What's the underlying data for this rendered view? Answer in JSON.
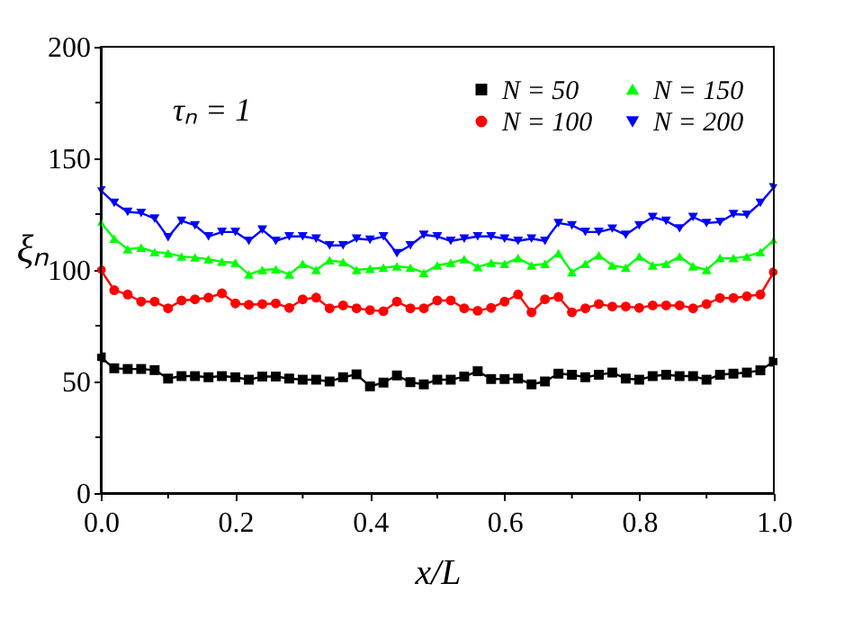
{
  "chart_data": {
    "type": "line",
    "xlabel": "x/L",
    "ylabel": "ξₙ",
    "annotations": [
      "τₙ = 1"
    ],
    "x": [
      0,
      0.02,
      0.04,
      0.06,
      0.08,
      0.1,
      0.12,
      0.14,
      0.16,
      0.18,
      0.2,
      0.22,
      0.24,
      0.26,
      0.28,
      0.3,
      0.32,
      0.34,
      0.36,
      0.38,
      0.4,
      0.42,
      0.44,
      0.46,
      0.48,
      0.5,
      0.52,
      0.54,
      0.56,
      0.58,
      0.6,
      0.62,
      0.64,
      0.66,
      0.68,
      0.7,
      0.72,
      0.74,
      0.76,
      0.78,
      0.8,
      0.82,
      0.84,
      0.86,
      0.88,
      0.9,
      0.92,
      0.94,
      0.96,
      0.98,
      1.0
    ],
    "series": [
      {
        "name": "N = 50",
        "color": "#000000",
        "marker": "square",
        "values": [
          60.8,
          55.9,
          55.6,
          55.6,
          55.1,
          51.3,
          52.4,
          52.4,
          51.9,
          52.4,
          51.9,
          50.8,
          52.2,
          52.2,
          51.3,
          50.8,
          50.8,
          50,
          51.9,
          53.2,
          47.8,
          49.5,
          52.7,
          49.7,
          48.7,
          50.8,
          50.8,
          52.2,
          54.6,
          51.1,
          51.1,
          51.3,
          48.7,
          50,
          53.5,
          53,
          51.9,
          53,
          54,
          51.3,
          50.8,
          52.4,
          53,
          52.4,
          52.4,
          50.8,
          53,
          53.5,
          54,
          55,
          58.9
        ]
      },
      {
        "name": "N = 100",
        "color": "#ff0000",
        "marker": "circle",
        "values": [
          100,
          90.9,
          89,
          85.8,
          85.8,
          82.8,
          86.3,
          86.8,
          87.6,
          89.5,
          85,
          84.4,
          84.7,
          85,
          83,
          86.8,
          87.6,
          82.8,
          84.1,
          82.8,
          82,
          81.5,
          85.8,
          82.8,
          82.8,
          86.3,
          86.3,
          82.8,
          81.7,
          83,
          85.8,
          89,
          81,
          86.8,
          87.9,
          81,
          82.8,
          84.7,
          83.6,
          83.6,
          83,
          84.1,
          84.1,
          84.1,
          82.8,
          84.7,
          87.4,
          87.4,
          88.2,
          89,
          99
        ]
      },
      {
        "name": "N = 150",
        "color": "#00ff00",
        "marker": "triangle-up",
        "values": [
          121.3,
          114,
          109.3,
          110,
          108,
          107.5,
          106,
          105.6,
          104.8,
          103.7,
          103.2,
          98,
          100,
          100.3,
          98,
          102.7,
          100,
          104.3,
          103.5,
          100,
          100.5,
          101,
          101.6,
          101,
          98.7,
          102,
          103.2,
          104.8,
          101.3,
          103.2,
          102.7,
          105.3,
          102,
          102.7,
          107.5,
          99,
          102.7,
          106.6,
          102,
          101,
          106,
          102,
          102.7,
          106,
          101.6,
          100,
          105.3,
          105.3,
          106,
          108,
          113.3
        ]
      },
      {
        "name": "N = 200",
        "color": "#0000ff",
        "marker": "triangle-down",
        "values": [
          135.6,
          130,
          126,
          125.5,
          123,
          114.6,
          122,
          120,
          115,
          117,
          117,
          113,
          118,
          113,
          115,
          115,
          114,
          111,
          111,
          114,
          113.5,
          115,
          107.5,
          111,
          115.7,
          115,
          113,
          114,
          115,
          115,
          114,
          113,
          114,
          113,
          121,
          120,
          117,
          117,
          118.5,
          115.7,
          120,
          123.7,
          122,
          118.6,
          123.7,
          121,
          121.5,
          125,
          124.7,
          130,
          137
        ]
      }
    ],
    "xlim": [
      0,
      1.0
    ],
    "ylim": [
      0,
      200
    ],
    "xticks": [
      {
        "value": 0,
        "label": "0.0"
      },
      {
        "value": 0.1,
        "label": null
      },
      0.2,
      {
        "value": 0.3,
        "label": null
      },
      0.4,
      {
        "value": 0.5,
        "label": null
      },
      0.6,
      {
        "value": 0.7,
        "label": null
      },
      0.8,
      {
        "value": 0.9,
        "label": null
      },
      {
        "value": 1.0,
        "label": "1.0"
      }
    ],
    "yticks": [
      0,
      {
        "value": 25,
        "label": null
      },
      50,
      {
        "value": 75,
        "label": null
      },
      100,
      {
        "value": 125,
        "label": null
      },
      150,
      {
        "value": 175,
        "label": null
      },
      200
    ],
    "grid": false,
    "legend": "top right"
  }
}
